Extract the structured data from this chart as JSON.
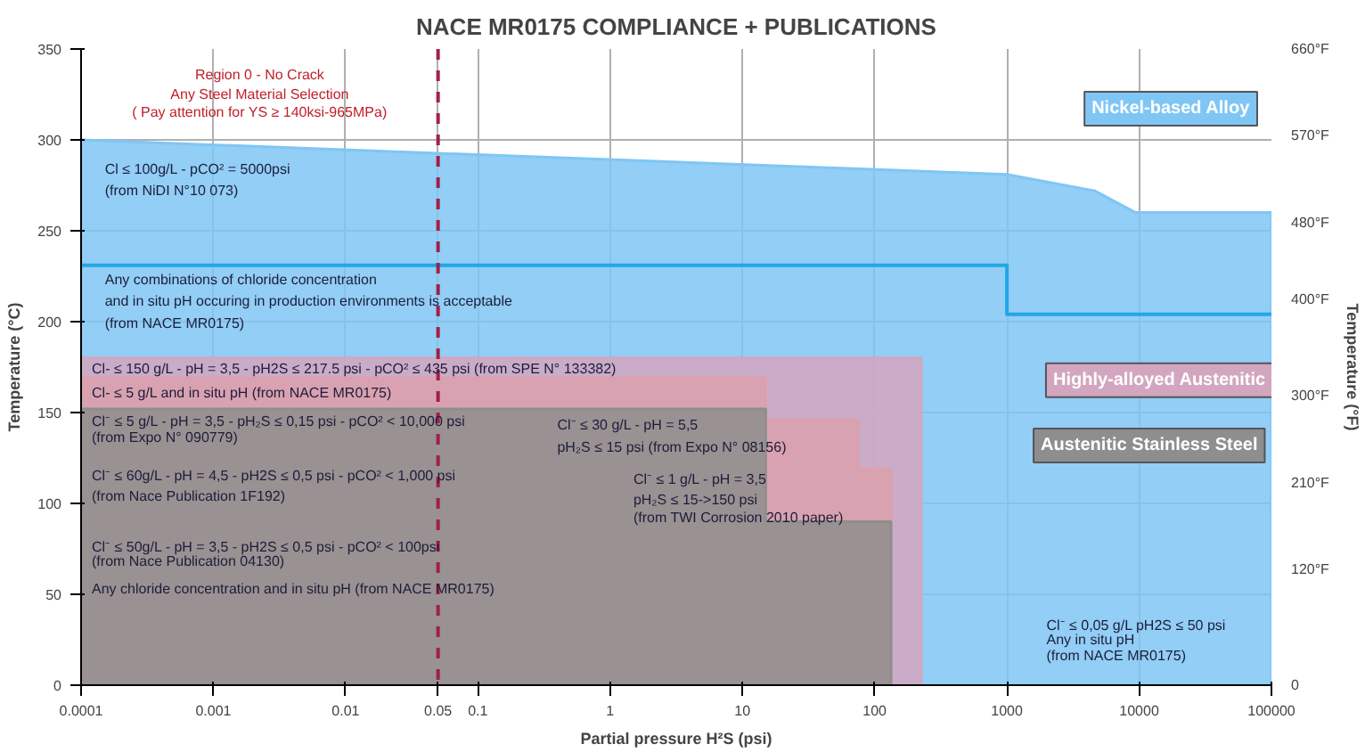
{
  "chart_data": {
    "type": "area",
    "title": "NACE MR0175 COMPLIANCE + PUBLICATIONS",
    "xlabel": "Partial pressure H²S (psi)",
    "ylabel": "Temperature (°C)",
    "y2label": "Temperature (°F)",
    "log": "x",
    "grid": true,
    "xlim": [
      0.0001,
      100000
    ],
    "xticks": [
      0.0001,
      0.001,
      0.01,
      0.05,
      0.1,
      1,
      10,
      100,
      1000,
      10000,
      100000
    ],
    "ylim": [
      0,
      350
    ],
    "yticks": [
      0,
      50,
      100,
      150,
      200,
      250,
      300,
      350
    ],
    "y2lim": [
      0,
      660
    ],
    "y2ticks": [
      0,
      {
        "value": 120,
        "label": "120°F"
      },
      {
        "value": 210,
        "label": "210°F"
      },
      {
        "value": 300,
        "label": "300°F"
      },
      {
        "value": 400,
        "label": "400°F"
      },
      {
        "value": 480,
        "label": "480°F"
      },
      {
        "value": 570,
        "label": "570°F"
      },
      {
        "value": 660,
        "label": "660°F"
      }
    ],
    "series": [
      {
        "name": "Nickel-based Alloy",
        "color": "#7fc6f5",
        "x": [
          0.0001,
          1000,
          4600,
          9400,
          100000
        ],
        "values": [
          300,
          281,
          272,
          260,
          260
        ]
      },
      {
        "type": "line",
        "color": "#22a6e6",
        "x": [
          0.0001,
          1000,
          1000,
          100000
        ],
        "values": [
          231,
          231,
          204,
          204
        ]
      },
      {
        "name": "Highly-alloyed Austenitic",
        "color": "#d3a6bf",
        "x": [
          0.0001,
          225,
          225
        ],
        "values": [
          180,
          180,
          0
        ]
      },
      {
        "color": "#dca0ad",
        "x": [
          0.0001,
          15,
          15,
          75,
          75,
          133
        ],
        "values": [
          169,
          169,
          146,
          146,
          119,
          119
        ]
      },
      {
        "name": "Austenitic Stainless Steel",
        "color": "#8e8e8e",
        "x": [
          0.0001,
          15,
          15,
          133,
          133
        ],
        "values": [
          152,
          152,
          90,
          90,
          0
        ]
      }
    ],
    "ref_lines": [
      {
        "axis": "x",
        "value": 0.05,
        "color": "#a0204a",
        "line_style": "dashed"
      }
    ],
    "annotations": [
      "Region 0 - No Crack",
      "Any Steel Material Selection",
      "( Pay attention for YS ≥ 140ksi-965MPa)",
      "Cl ≤ 100g/L - pCO² = 5000psi",
      "(from NiDI N°10 073)",
      "Any combinations of chloride concentration",
      "and in situ pH occuring in production environments is acceptable",
      "(from NACE MR0175)",
      "Cl- ≤ 150 g/L - pH = 3,5 - pH2S ≤ 217.5 psi - pCO² ≤ 435 psi (from SPE N° 133382)",
      "Cl- ≤ 5 g/L and in situ pH (from NACE MR0175)",
      "Cl⁻ ≤ 5 g/L - pH = 3,5 - pH₂S ≤ 0,15 psi - pCO² < 10,000 psi",
      "(from Expo N° 090779)",
      "Cl⁻ ≤ 30 g/L - pH = 5,5",
      "pH₂S ≤ 15 psi (from Expo N° 08156)",
      "Cl⁻ ≤ 60g/L - pH = 4,5 - pH2S ≤ 0,5 psi - pCO² < 1,000 psi",
      "(from Nace Publication 1F192)",
      "Cl⁻ ≤ 1 g/L - pH = 3,5",
      "pH₂S ≤ 15->150 psi",
      "(from TWI Corrosion 2010 paper)",
      "Cl⁻ ≤ 50g/L - pH = 3,5 - pH2S ≤ 0,5 psi - pCO² < 100psi",
      "(from Nace Publication 04130)",
      "Any chloride concentration and in situ pH (from NACE MR0175)",
      "Cl⁻ ≤ 0,05 g/L   pH2S ≤ 50 psi",
      "Any in situ pH",
      "(from NACE MR0175)"
    ]
  }
}
